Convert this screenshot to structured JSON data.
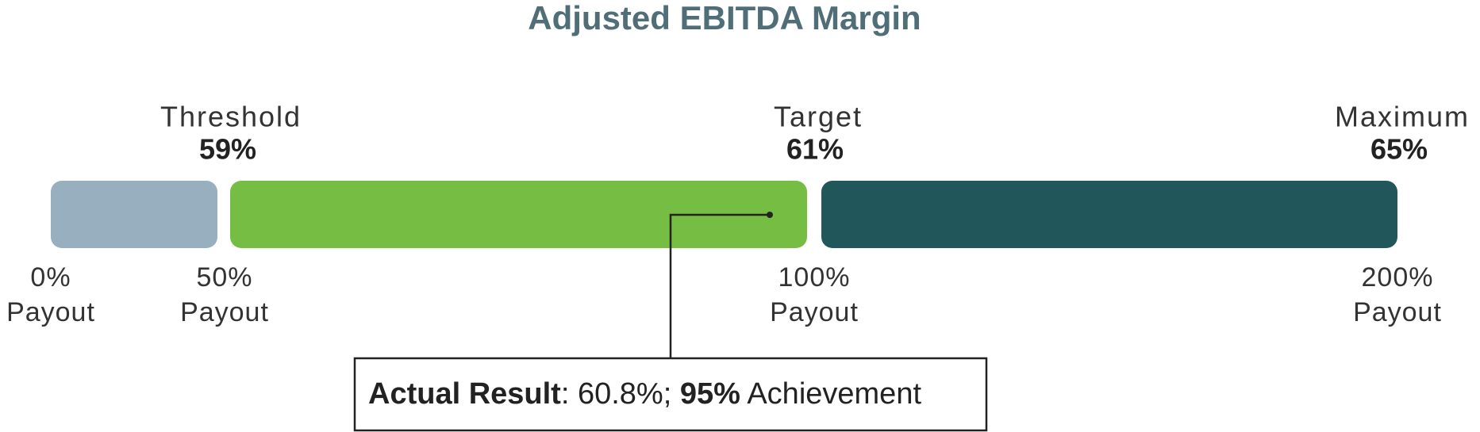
{
  "title": "Adjusted EBITDA Margin",
  "levels": [
    {
      "label": "Threshold",
      "value": "59%",
      "color": "#97afbf"
    },
    {
      "label": "Target",
      "value": "61%",
      "color": "#76be43"
    },
    {
      "label": "Maximum",
      "value": "65%",
      "color": "#21575b"
    }
  ],
  "payouts": [
    {
      "percent": "0%",
      "label": "Payout"
    },
    {
      "percent": "50%",
      "label": "Payout"
    },
    {
      "percent": "100%",
      "label": "Payout"
    },
    {
      "percent": "200%",
      "label": "Payout"
    }
  ],
  "result": [
    {
      "text": "Actual Result",
      "bold": true
    },
    {
      "text": ": 60.8%; ",
      "bold": false
    },
    {
      "text": "95%",
      "bold": true
    },
    {
      "text": " Achievement",
      "bold": false
    }
  ]
}
